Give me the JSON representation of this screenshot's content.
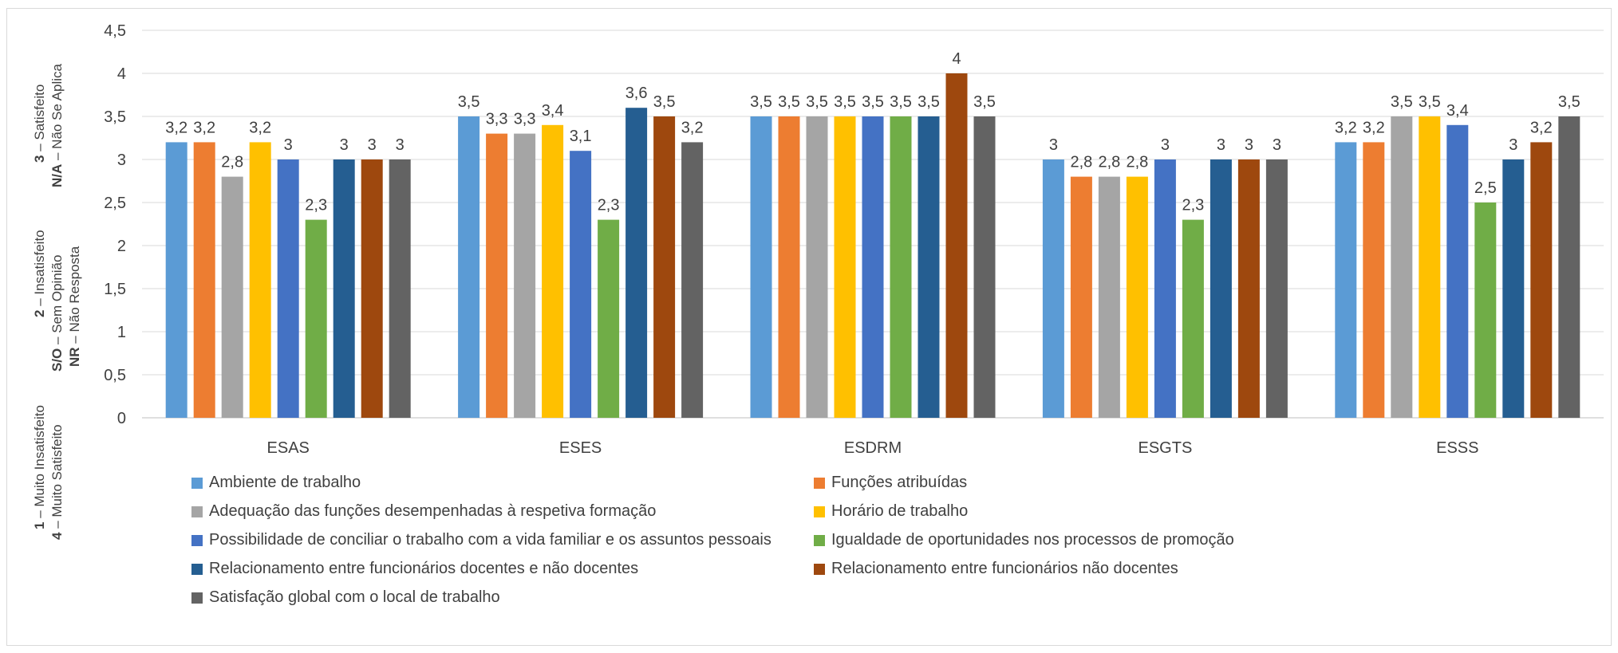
{
  "chart_data": {
    "type": "bar",
    "categories": [
      "ESAS",
      "ESES",
      "ESDRM",
      "ESGTS",
      "ESSS"
    ],
    "ylim": [
      0,
      4.5
    ],
    "yticks": [
      "0",
      "0,5",
      "1",
      "1,5",
      "2",
      "2,5",
      "3",
      "3,5",
      "4",
      "4,5"
    ],
    "ytick_values": [
      0,
      0.5,
      1,
      1.5,
      2,
      2.5,
      3,
      3.5,
      4,
      4.5
    ],
    "grid": true,
    "legend_position": "bottom",
    "y_side_labels": [
      {
        "bold": "1",
        "text": " – Muito Insatisfeito"
      },
      {
        "bold": "4",
        "text": " – Muito Satisfeito"
      },
      {
        "bold": "2",
        "text": " – Insatisfeito"
      },
      {
        "bold": "S/O",
        "text": " – Sem Opinião"
      },
      {
        "bold": "NR",
        "text": " – Não Resposta"
      },
      {
        "bold": "3",
        "text": " – Satisfeito"
      },
      {
        "bold": "N/A",
        "text": " – Não Se Aplica"
      }
    ],
    "series": [
      {
        "name": "Ambiente de trabalho",
        "color": "#5b9bd5",
        "values": [
          3.2,
          3.5,
          3.5,
          3,
          3.2
        ],
        "labels": [
          "3,2",
          "3,5",
          "3,5",
          "3",
          "3,2"
        ]
      },
      {
        "name": "Funções atribuídas",
        "color": "#ed7d31",
        "values": [
          3.2,
          3.3,
          3.5,
          2.8,
          3.2
        ],
        "labels": [
          "3,2",
          "3,3",
          "3,5",
          "2,8",
          "3,2"
        ]
      },
      {
        "name": "Adequação das funções desempenhadas à respetiva formação",
        "color": "#a5a5a5",
        "values": [
          2.8,
          3.3,
          3.5,
          2.8,
          3.5
        ],
        "labels": [
          "2,8",
          "3,3",
          "3,5",
          "2,8",
          "3,5"
        ]
      },
      {
        "name": "Horário de trabalho",
        "color": "#ffc000",
        "values": [
          3.2,
          3.4,
          3.5,
          2.8,
          3.5
        ],
        "labels": [
          "3,2",
          "3,4",
          "3,5",
          "2,8",
          "3,5"
        ]
      },
      {
        "name": "Possibilidade de conciliar o trabalho com a vida familiar e os assuntos pessoais",
        "color": "#4472c4",
        "values": [
          3,
          3.1,
          3.5,
          3,
          3.4
        ],
        "labels": [
          "3",
          "3,1",
          "3,5",
          "3",
          "3,4"
        ]
      },
      {
        "name": "Igualdade de oportunidades nos processos de promoção",
        "color": "#70ad47",
        "values": [
          2.3,
          2.3,
          3.5,
          2.3,
          2.5
        ],
        "labels": [
          "2,3",
          "2,3",
          "3,5",
          "2,3",
          "2,5"
        ]
      },
      {
        "name": "Relacionamento entre funcionários docentes e não docentes",
        "color": "#255e91",
        "values": [
          3,
          3.6,
          3.5,
          3,
          3
        ],
        "labels": [
          "3",
          "3,6",
          "3,5",
          "3",
          "3"
        ]
      },
      {
        "name": "Relacionamento entre funcionários não docentes",
        "color": "#9e480e",
        "values": [
          3,
          3.5,
          4,
          3,
          3.2
        ],
        "labels": [
          "3",
          "3,5",
          "4",
          "3",
          "3,2"
        ]
      },
      {
        "name": "Satisfação global com o local de trabalho",
        "color": "#636363",
        "values": [
          3,
          3.2,
          3.5,
          3,
          3.5
        ],
        "labels": [
          "3",
          "3,2",
          "3,5",
          "3",
          "3,5"
        ]
      }
    ]
  }
}
